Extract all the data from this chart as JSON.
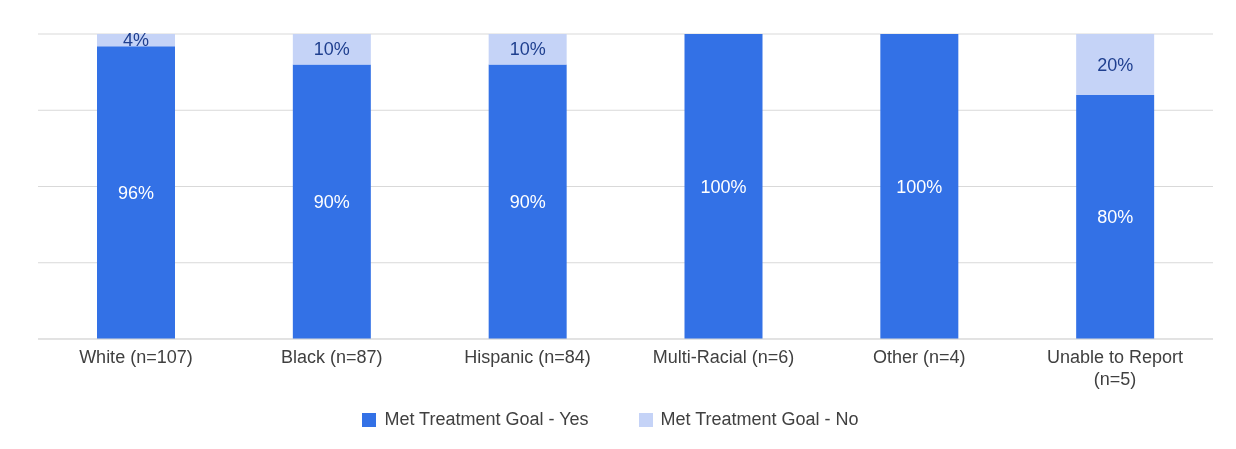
{
  "chart_data": {
    "type": "bar",
    "stacked": true,
    "categories": [
      "White (n=107)",
      "Black (n=87)",
      "Hispanic (n=84)",
      "Multi-Racial (n=6)",
      "Other (n=4)",
      "Unable to Report (n=5)"
    ],
    "series": [
      {
        "name": "Met Treatment Goal - Yes",
        "color": "#3371e6",
        "values": [
          96,
          90,
          90,
          100,
          100,
          80
        ],
        "value_labels": [
          "96%",
          "90%",
          "90%",
          "100%",
          "100%",
          "80%"
        ]
      },
      {
        "name": "Met Treatment Goal - No",
        "color": "#c5d3f7",
        "values": [
          4,
          10,
          10,
          0,
          0,
          20
        ],
        "value_labels": [
          "4%",
          "10%",
          "10%",
          null,
          null,
          "20%"
        ]
      }
    ],
    "ylim": [
      0,
      100
    ],
    "tick_labels": "x",
    "grid": "y",
    "legend": "bottom"
  }
}
